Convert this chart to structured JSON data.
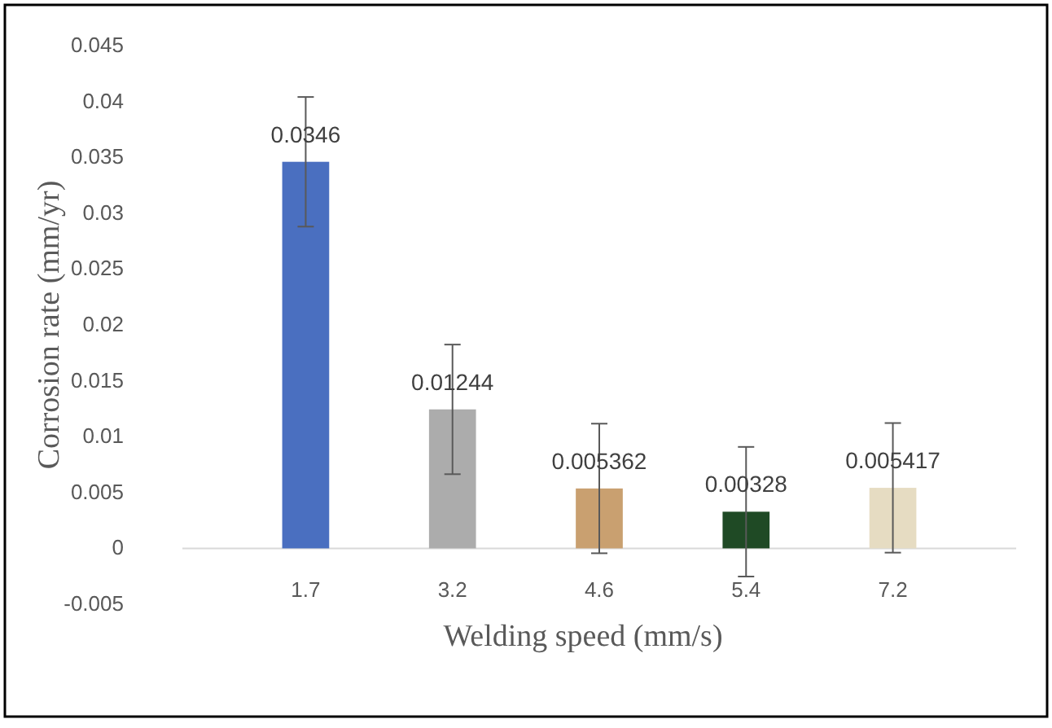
{
  "chart_data": {
    "type": "bar",
    "xlabel": "Welding speed (mm/s)",
    "ylabel": "Corrosion rate (mm/yr)",
    "categories": [
      "1.7",
      "3.2",
      "4.6",
      "5.4",
      "7.2"
    ],
    "values": [
      0.0346,
      0.01244,
      0.005362,
      0.00328,
      0.005417
    ],
    "colors": [
      "#4a6fc0",
      "#acacac",
      "#c9a070",
      "#1f4a25",
      "#e6dcc2"
    ],
    "errors": [
      0.0058,
      0.0058,
      0.0058,
      0.0058,
      0.0058
    ],
    "data_labels": true,
    "ylim": [
      -0.005,
      0.045
    ],
    "yticks": [
      -0.005,
      0,
      0.005,
      0.01,
      0.015,
      0.02,
      0.025,
      0.03,
      0.035,
      0.04,
      0.045
    ],
    "grid": false
  }
}
